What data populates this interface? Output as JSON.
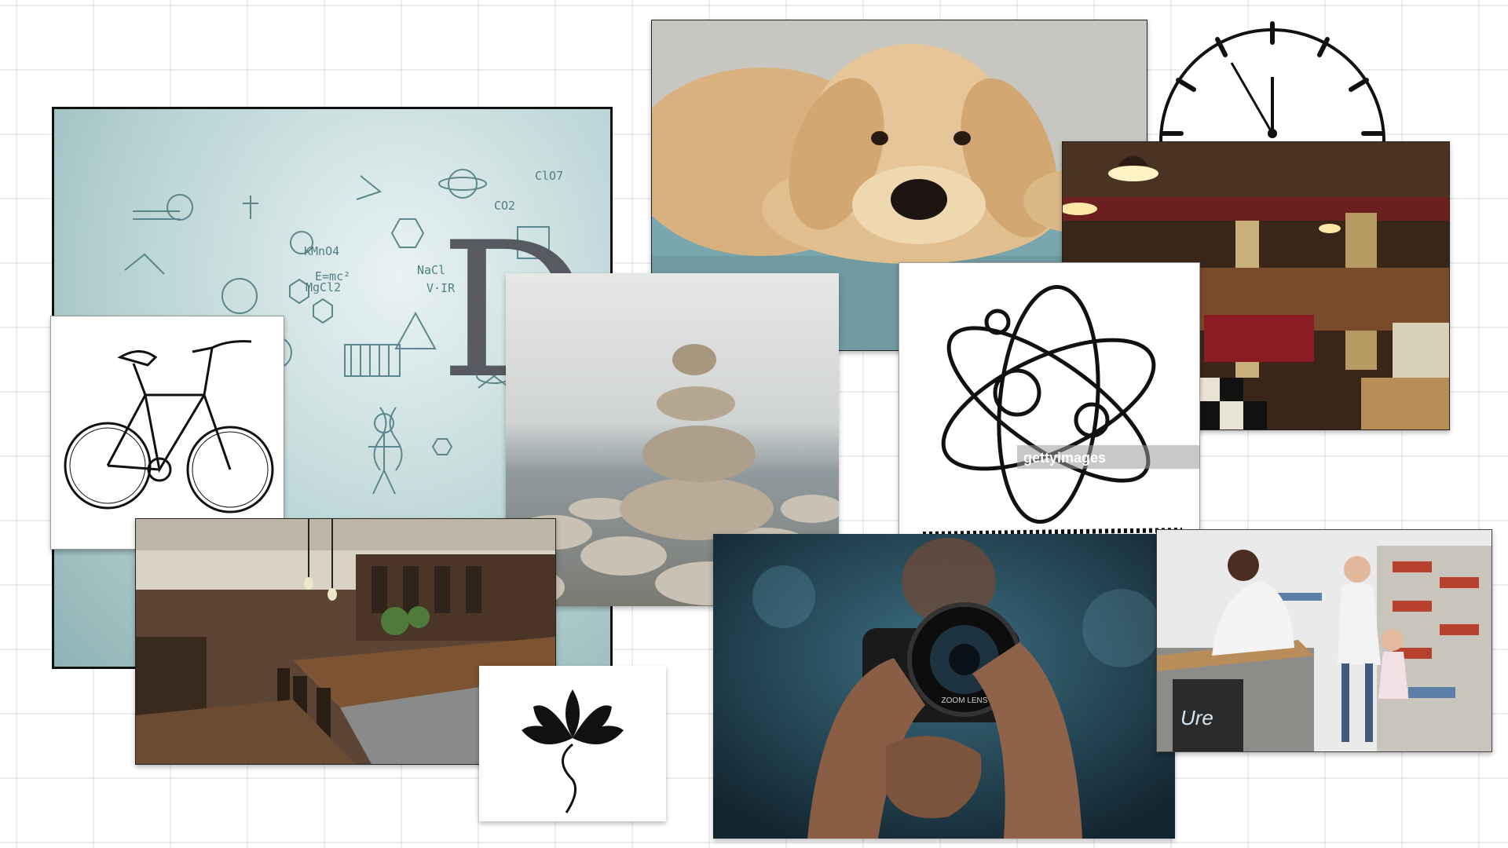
{
  "board": {
    "letter": "D"
  },
  "tiles": {
    "science": {
      "icon": "science-doodle-icon",
      "formula_1": "E=mc²",
      "formula_2": "KMnO4",
      "formula_3": "MgCl2",
      "formula_4": "CO2",
      "formula_5": "NaCl",
      "formula_6": "ClO7",
      "formula_7": "V·IR"
    },
    "dog": {
      "icon": "golden-retriever-puppy"
    },
    "clock": {
      "icon": "clock-icon"
    },
    "diner": {
      "icon": "diner-interior"
    },
    "bike": {
      "icon": "bicycle-sketch-icon"
    },
    "stones": {
      "icon": "stacked-stones"
    },
    "atom": {
      "icon": "atom-sketch-icon",
      "watermark": "gettyimages"
    },
    "bar": {
      "icon": "restaurant-bar-interior"
    },
    "lotus": {
      "icon": "lotus-flower-icon"
    },
    "camera": {
      "icon": "camera-photographer",
      "lens_text": "ZOOM LENS"
    },
    "shop": {
      "icon": "grocery-store-scene",
      "sign_text": "Ure"
    }
  },
  "colors": {
    "background": "#ffffff",
    "grid": "#e0e0e4",
    "letter": "#575a61",
    "science_tint": "#b9d3d3",
    "doodle": "#4f7e83"
  }
}
